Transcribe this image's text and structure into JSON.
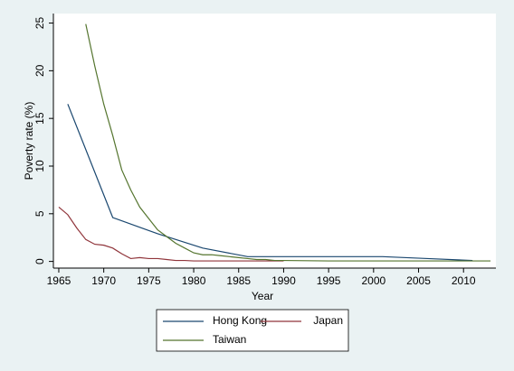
{
  "chart_data": {
    "type": "line",
    "x_label": "Year",
    "y_label": "Poverty rate (%)",
    "series": [
      {
        "name": "Hong Kong",
        "color": "#1a476f",
        "x": [
          1966,
          1971,
          1976,
          1981,
          1986,
          1991,
          1996,
          2001,
          2006,
          2011
        ],
        "values": [
          16.5,
          4.6,
          2.9,
          1.4,
          0.5,
          0.5,
          0.5,
          0.5,
          0.3,
          0.1
        ]
      },
      {
        "name": "Japan",
        "color": "#90353b",
        "x": [
          1965,
          1966,
          1967,
          1968,
          1969,
          1970,
          1971,
          1972,
          1973,
          1974,
          1975,
          1976,
          1977,
          1978,
          1979,
          1980,
          1985,
          1990
        ],
        "values": [
          5.7,
          4.9,
          3.5,
          2.3,
          1.8,
          1.7,
          1.4,
          0.8,
          0.3,
          0.4,
          0.3,
          0.3,
          0.2,
          0.1,
          0.1,
          0.05,
          0.05,
          0.05
        ]
      },
      {
        "name": "Taiwan",
        "color": "#55752f",
        "x": [
          1968,
          1969,
          1970,
          1971,
          1972,
          1973,
          1974,
          1975,
          1976,
          1977,
          1978,
          1979,
          1980,
          1981,
          1982,
          1983,
          1984,
          1985,
          1986,
          1987,
          1988,
          1989,
          1990,
          1995,
          2000,
          2005,
          2010,
          2013
        ],
        "values": [
          24.9,
          20.5,
          16.5,
          13.2,
          9.6,
          7.5,
          5.7,
          4.5,
          3.3,
          2.6,
          1.9,
          1.4,
          0.9,
          0.7,
          0.7,
          0.6,
          0.5,
          0.4,
          0.3,
          0.2,
          0.2,
          0.1,
          0.1,
          0.05,
          0.05,
          0.05,
          0.05,
          0.05
        ]
      }
    ],
    "xlim": [
      1964.4,
      2013.6
    ],
    "ylim": [
      -0.7,
      26
    ],
    "xticks": [
      1965,
      1970,
      1975,
      1980,
      1985,
      1990,
      1995,
      2000,
      2005,
      2010
    ],
    "yticks": [
      0,
      5,
      10,
      15,
      20,
      25
    ],
    "grid": false,
    "legend": "bottom"
  }
}
